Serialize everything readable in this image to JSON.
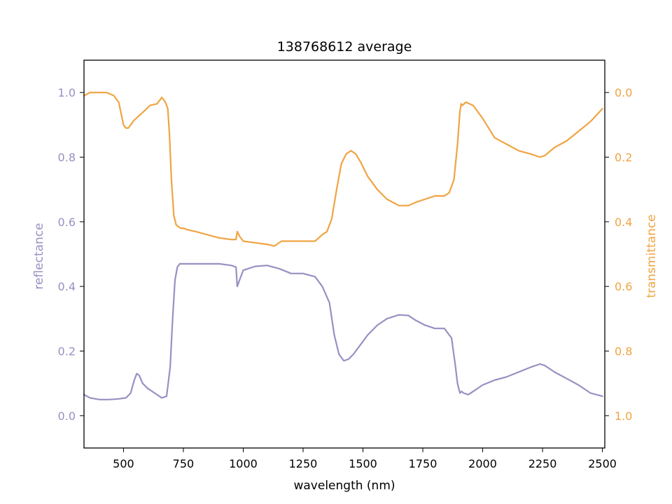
{
  "chart_data": {
    "type": "line",
    "title": "138768612 average",
    "xlabel": "wavelength (nm)",
    "ylabel": "reflectance",
    "y2label": "transmittance",
    "xlim": [
      335,
      2510
    ],
    "ylim": [
      -0.1,
      1.1
    ],
    "y2lim": [
      1.1,
      -0.1
    ],
    "y2_inverted": true,
    "grid": false,
    "x_ticks": [
      500,
      750,
      1000,
      1250,
      1500,
      1750,
      2000,
      2250,
      2500
    ],
    "x_tick_labels": [
      "500",
      "750",
      "1000",
      "1250",
      "1500",
      "1750",
      "2000",
      "2250",
      "2500"
    ],
    "y_ticks": [
      0.0,
      0.2,
      0.4,
      0.6,
      0.8,
      1.0
    ],
    "y_tick_labels": [
      "0.0",
      "0.2",
      "0.4",
      "0.6",
      "0.8",
      "1.0"
    ],
    "y2_ticks": [
      0.0,
      0.2,
      0.4,
      0.6,
      0.8,
      1.0
    ],
    "y2_tick_labels": [
      "0.0",
      "0.2",
      "0.4",
      "0.6",
      "0.8",
      "1.0"
    ],
    "colors": {
      "reflectance": "#9691c2",
      "transmittance": "#f0a442"
    },
    "series": [
      {
        "axis": "left",
        "x": [
          335,
          360,
          400,
          440,
          480,
          510,
          530,
          545,
          555,
          565,
          580,
          600,
          630,
          660,
          680,
          695,
          705,
          715,
          725,
          735,
          745,
          760,
          800,
          850,
          900,
          950,
          970,
          975,
          985,
          1000,
          1050,
          1100,
          1150,
          1200,
          1250,
          1300,
          1330,
          1360,
          1380,
          1400,
          1420,
          1440,
          1460,
          1490,
          1520,
          1560,
          1600,
          1650,
          1690,
          1720,
          1760,
          1800,
          1840,
          1870,
          1885,
          1895,
          1905,
          1912,
          1920,
          1940,
          1960,
          1980,
          2000,
          2050,
          2100,
          2150,
          2200,
          2240,
          2260,
          2300,
          2350,
          2400,
          2450,
          2500
        ],
        "y": [
          0.065,
          0.055,
          0.05,
          0.05,
          0.052,
          0.055,
          0.07,
          0.11,
          0.13,
          0.125,
          0.1,
          0.085,
          0.07,
          0.055,
          0.06,
          0.15,
          0.3,
          0.42,
          0.46,
          0.47,
          0.47,
          0.47,
          0.47,
          0.47,
          0.47,
          0.465,
          0.46,
          0.4,
          0.42,
          0.45,
          0.462,
          0.465,
          0.455,
          0.44,
          0.44,
          0.43,
          0.4,
          0.35,
          0.25,
          0.19,
          0.17,
          0.175,
          0.19,
          0.22,
          0.25,
          0.28,
          0.3,
          0.312,
          0.31,
          0.295,
          0.28,
          0.27,
          0.27,
          0.24,
          0.16,
          0.1,
          0.07,
          0.075,
          0.07,
          0.065,
          0.075,
          0.085,
          0.095,
          0.11,
          0.12,
          0.135,
          0.15,
          0.16,
          0.155,
          0.135,
          0.115,
          0.095,
          0.07,
          0.06
        ]
      },
      {
        "axis": "right",
        "x": [
          335,
          360,
          400,
          430,
          460,
          480,
          500,
          510,
          520,
          530,
          545,
          560,
          575,
          590,
          610,
          640,
          660,
          675,
          685,
          692,
          700,
          710,
          720,
          730,
          740,
          750,
          770,
          800,
          850,
          900,
          950,
          970,
          975,
          985,
          1000,
          1050,
          1100,
          1130,
          1160,
          1200,
          1250,
          1300,
          1330,
          1350,
          1370,
          1390,
          1410,
          1430,
          1450,
          1470,
          1490,
          1520,
          1560,
          1600,
          1650,
          1690,
          1720,
          1760,
          1800,
          1840,
          1860,
          1880,
          1895,
          1905,
          1910,
          1915,
          1930,
          1960,
          2000,
          2050,
          2100,
          2150,
          2200,
          2240,
          2260,
          2300,
          2350,
          2400,
          2450,
          2500
        ],
        "y": [
          0.01,
          0.0,
          0.0,
          0.0,
          0.01,
          0.03,
          0.1,
          0.11,
          0.11,
          0.1,
          0.085,
          0.075,
          0.065,
          0.055,
          0.04,
          0.035,
          0.015,
          0.03,
          0.05,
          0.13,
          0.27,
          0.38,
          0.41,
          0.415,
          0.42,
          0.42,
          0.425,
          0.43,
          0.44,
          0.45,
          0.455,
          0.455,
          0.43,
          0.445,
          0.46,
          0.465,
          0.47,
          0.475,
          0.46,
          0.46,
          0.46,
          0.46,
          0.44,
          0.43,
          0.39,
          0.3,
          0.22,
          0.19,
          0.18,
          0.19,
          0.215,
          0.26,
          0.3,
          0.33,
          0.35,
          0.35,
          0.34,
          0.33,
          0.32,
          0.32,
          0.31,
          0.27,
          0.16,
          0.06,
          0.035,
          0.04,
          0.03,
          0.04,
          0.08,
          0.14,
          0.16,
          0.18,
          0.19,
          0.2,
          0.195,
          0.17,
          0.15,
          0.12,
          0.09,
          0.05
        ]
      }
    ]
  }
}
